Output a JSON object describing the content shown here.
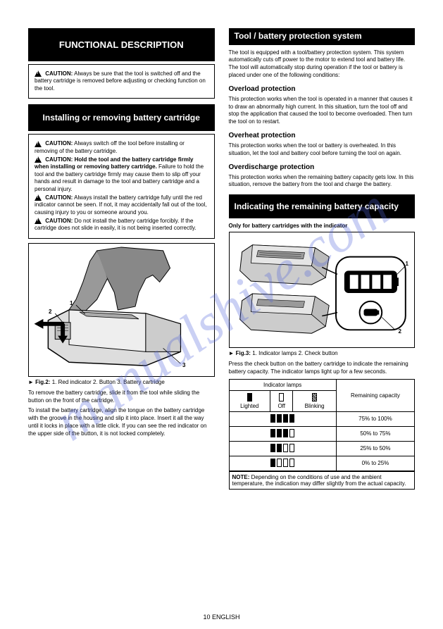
{
  "page_number": "10 ENGLISH",
  "watermark": "manualshive.com",
  "left": {
    "h1": "FUNCTIONAL DESCRIPTION",
    "box1": {
      "caution_label": "CAUTION:",
      "text": "Always be sure that the tool is switched off and the battery cartridge is removed before adjusting or checking function on the tool."
    },
    "h2": "Installing or removing battery cartridge",
    "box2": {
      "c1": {
        "label": "CAUTION:",
        "text": "Always switch off the tool before installing or removing of the battery cartridge."
      },
      "c2": {
        "label": "CAUTION:",
        "text_a": "Hold the tool and the battery cartridge firmly when installing or removing battery cartridge.",
        "text_b": "Failure to hold the tool and the battery cartridge firmly may cause them to slip off your hands and result in damage to the tool and battery cartridge and a personal injury."
      },
      "c3": {
        "label": "CAUTION:",
        "text": "Always install the battery cartridge fully until the red indicator cannot be seen. If not, it may accidentally fall out of the tool, causing injury to you or someone around you."
      },
      "c4": {
        "label": "CAUTION:",
        "text": "Do not install the battery cartridge forcibly. If the cartridge does not slide in easily, it is not being inserted correctly."
      }
    },
    "fig2": {
      "labels": {
        "a": "1",
        "b": "2",
        "c": "3"
      },
      "caption_label": "► Fig.2:",
      "caption": "1. Red indicator 2. Button 3. Battery cartridge"
    },
    "para1": "To remove the battery cartridge, slide it from the tool while sliding the button on the front of the cartridge.",
    "para2": "To install the battery cartridge, align the tongue on the battery cartridge with the groove in the housing and slip it into place. Insert it all the way until it locks in place with a little click. If you can see the red indicator on the upper side of the button, it is not locked completely."
  },
  "right": {
    "h_right": "Tool / battery protection system",
    "para_intro": "The tool is equipped with a tool/battery protection system. This system automatically cuts off power to the motor to extend tool and battery life. The tool will automatically stop during operation if the tool or battery is placed under one of the following conditions:",
    "sub1": "Overload protection",
    "sub1_text": "This protection works when the tool is operated in a manner that causes it to draw an abnormally high current. In this situation, turn the tool off and stop the application that caused the tool to become overloaded. Then turn the tool on to restart.",
    "sub2": "Overheat protection",
    "sub2_text": "This protection works when the tool or battery is overheated. In this situation, let the tool and battery cool before turning the tool on again.",
    "sub3": "Overdischarge protection",
    "sub3_text": "This protection works when the remaining battery capacity gets low. In this situation, remove the battery from the tool and charge the battery.",
    "h2_right": "Indicating the remaining battery capacity",
    "only_for": "Only for battery cartridges with the indicator",
    "fig3": {
      "labels": {
        "a": "1",
        "b": "2"
      },
      "caption_label": "► Fig.3:",
      "caption": "1. Indicator lamps 2. Check button"
    },
    "press_text": "Press the check button on the battery cartridge to indicate the remaining battery capacity. The indicator lamps light up for a few seconds.",
    "table": {
      "head1": "Indicator lamps",
      "head2": "Remaining capacity",
      "col_lighted": "Lighted",
      "col_off": "Off",
      "col_blinking": "Blinking",
      "rows": [
        {
          "pattern": [
            "on",
            "on",
            "on",
            "on"
          ],
          "capacity": "75% to 100%"
        },
        {
          "pattern": [
            "on",
            "on",
            "on",
            "off"
          ],
          "capacity": "50% to 75%"
        },
        {
          "pattern": [
            "on",
            "on",
            "off",
            "off"
          ],
          "capacity": "25% to 50%"
        },
        {
          "pattern": [
            "on",
            "off",
            "off",
            "off"
          ],
          "capacity": "0% to 25%"
        }
      ],
      "note_label": "NOTE:",
      "note": "Depending on the conditions of use and the ambient temperature, the indication may differ slightly from the actual capacity."
    }
  }
}
